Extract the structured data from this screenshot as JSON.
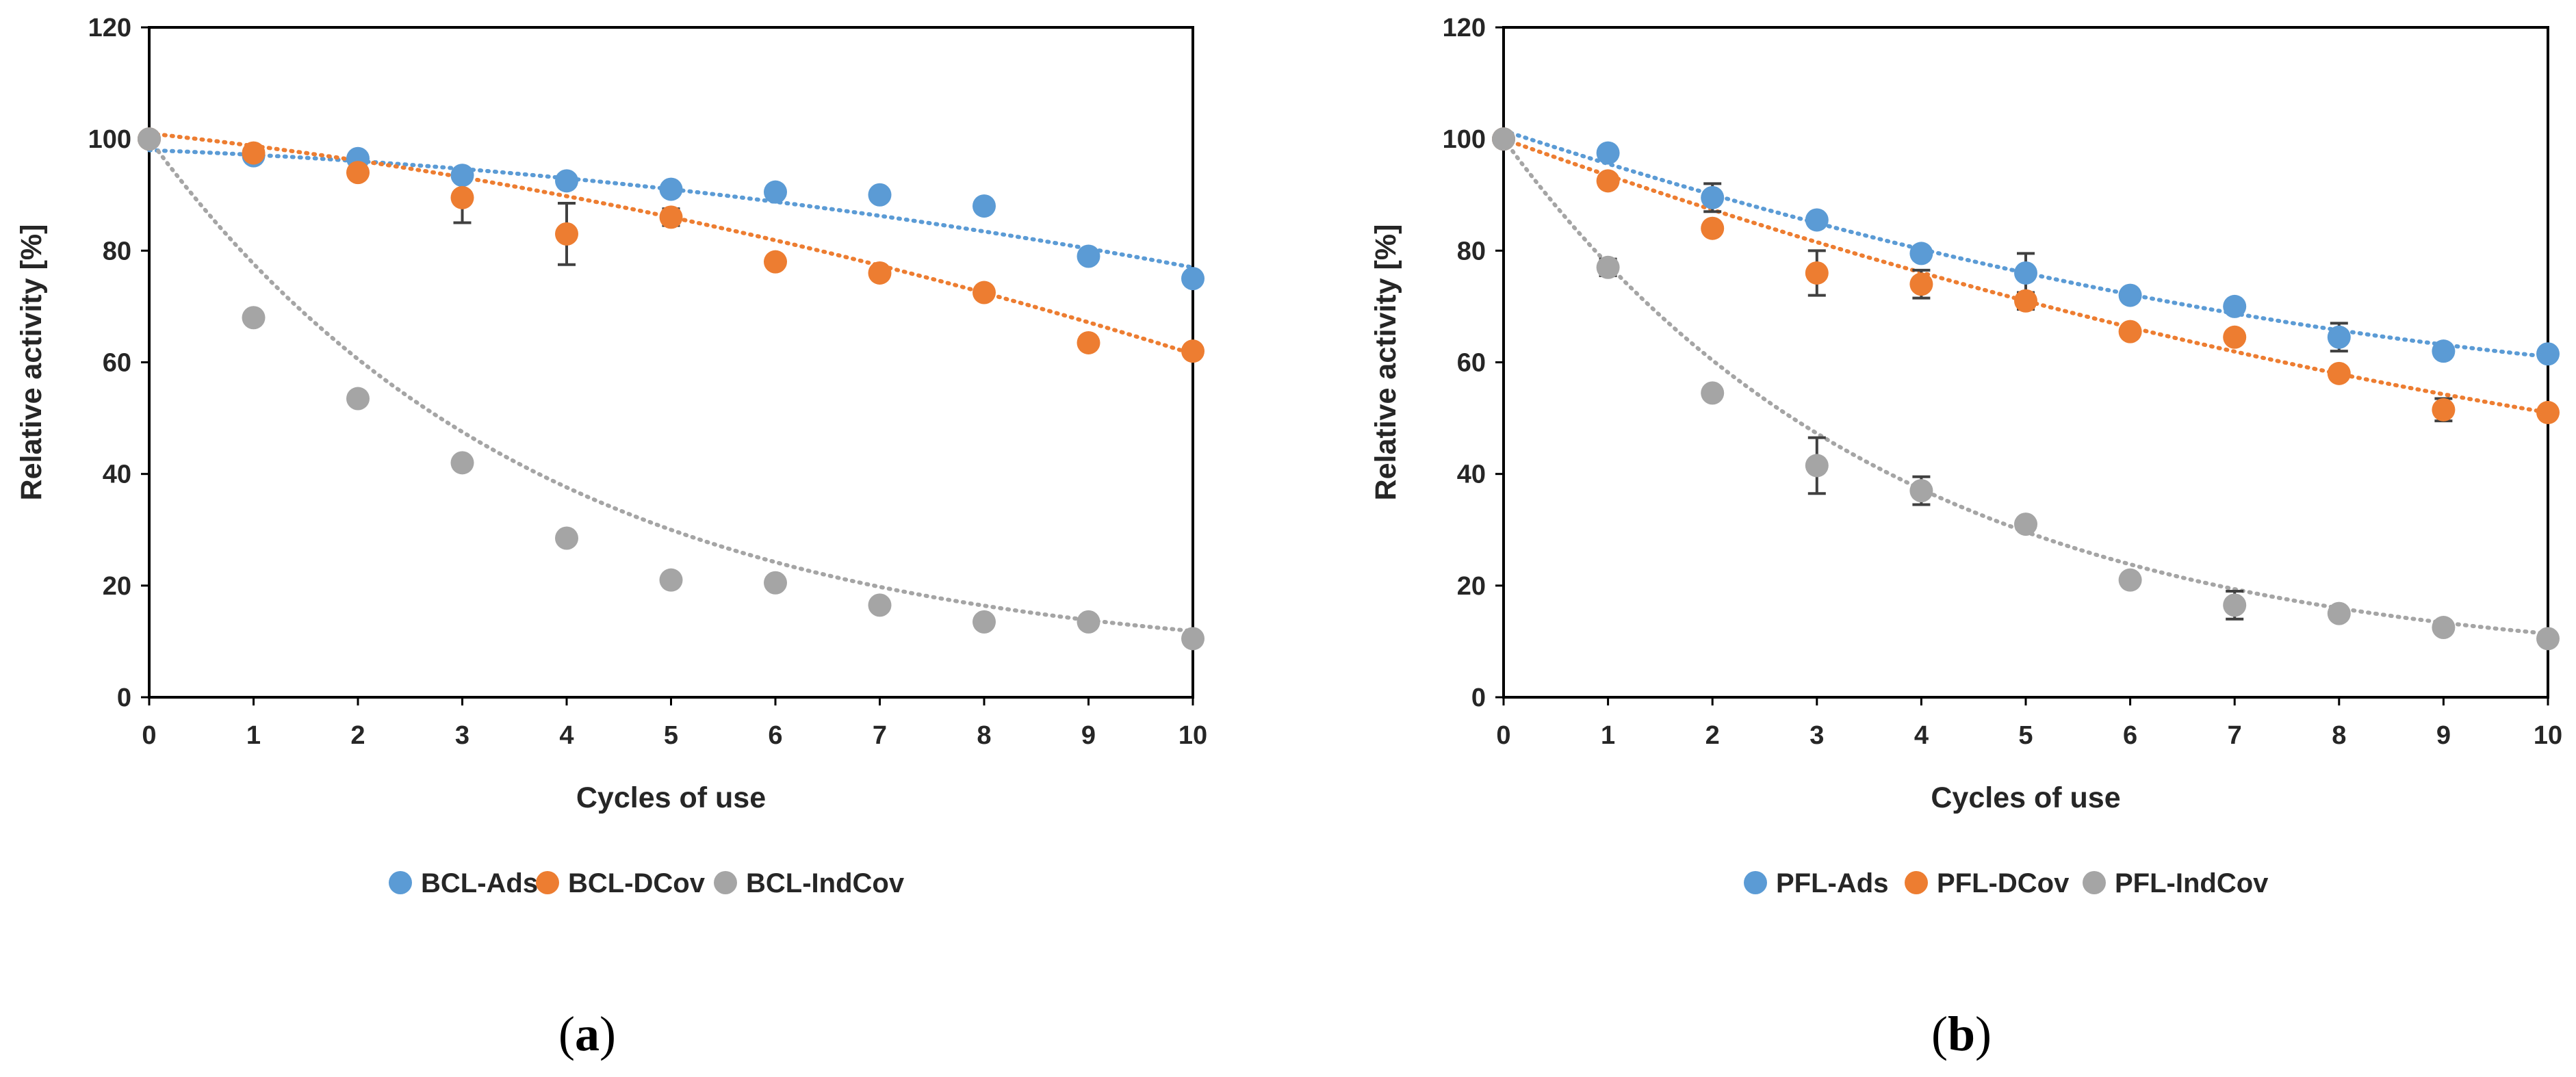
{
  "chart_data": [
    {
      "type": "scatter",
      "panel_label": "a",
      "xlabel": "Cycles of use",
      "ylabel": "Relative activity [%]",
      "xlim": [
        0,
        10
      ],
      "ylim": [
        0,
        120
      ],
      "xticks": [
        "0",
        "1",
        "2",
        "3",
        "4",
        "5",
        "6",
        "7",
        "8",
        "9",
        "10"
      ],
      "yticks": [
        "0",
        "20",
        "40",
        "60",
        "80",
        "100",
        "120"
      ],
      "grid": false,
      "legend_position": "bottom",
      "series": [
        {
          "name": "BCL-Ads",
          "color": "#5B9BD5",
          "x": [
            0,
            1,
            2,
            3,
            4,
            5,
            6,
            7,
            8,
            9,
            10
          ],
          "y": [
            100,
            97,
            96.5,
            93.5,
            92.5,
            91,
            90.5,
            90,
            88,
            79,
            75
          ],
          "err": [
            0,
            0,
            0,
            0,
            0,
            0,
            0,
            0,
            0,
            0,
            0
          ],
          "trend_ends": [
            98,
            77
          ]
        },
        {
          "name": "BCL-DCov",
          "color": "#ED7D31",
          "x": [
            0,
            1,
            2,
            3,
            4,
            5,
            6,
            7,
            8,
            9,
            10
          ],
          "y": [
            100,
            97.5,
            94,
            89.5,
            83,
            86,
            78,
            76,
            72.5,
            63.5,
            62
          ],
          "err": [
            0,
            0,
            0,
            4.5,
            5.5,
            1.5,
            0,
            0,
            0,
            0,
            0
          ],
          "trend_ends": [
            101,
            61.5
          ]
        },
        {
          "name": "BCL-IndCov",
          "color": "#A5A5A5",
          "x": [
            0,
            1,
            2,
            3,
            4,
            5,
            6,
            7,
            8,
            9,
            10
          ],
          "y": [
            100,
            68,
            53.5,
            42,
            28.5,
            21,
            20.5,
            16.5,
            13.5,
            13.5,
            10.5
          ],
          "err": [
            0,
            0,
            0,
            0,
            0,
            0,
            0,
            0,
            0,
            0,
            0
          ],
          "trend_ends": [
            100,
            10.5
          ]
        }
      ]
    },
    {
      "type": "scatter",
      "panel_label": "b",
      "xlabel": "Cycles of use",
      "ylabel": "Relative activity [%]",
      "xlim": [
        0,
        10
      ],
      "ylim": [
        0,
        120
      ],
      "xticks": [
        "0",
        "1",
        "2",
        "3",
        "4",
        "5",
        "6",
        "7",
        "8",
        "9",
        "10"
      ],
      "yticks": [
        "0",
        "20",
        "40",
        "60",
        "80",
        "100",
        "120"
      ],
      "grid": false,
      "legend_position": "bottom",
      "series": [
        {
          "name": "PFL-Ads",
          "color": "#5B9BD5",
          "x": [
            0,
            1,
            2,
            3,
            4,
            5,
            6,
            7,
            8,
            9,
            10
          ],
          "y": [
            100,
            97.5,
            89.5,
            85.5,
            79.5,
            76,
            72,
            70,
            64.5,
            62,
            61.5
          ],
          "err": [
            0,
            0,
            2.5,
            0,
            0,
            3.5,
            0,
            0,
            2.5,
            0,
            0
          ],
          "trend_ends": [
            101.5,
            61
          ]
        },
        {
          "name": "PFL-DCov",
          "color": "#ED7D31",
          "x": [
            0,
            1,
            2,
            3,
            4,
            5,
            6,
            7,
            8,
            9,
            10
          ],
          "y": [
            100,
            92.5,
            84,
            76,
            74,
            71,
            65.5,
            64.5,
            58,
            51.5,
            51
          ],
          "err": [
            0,
            0,
            0,
            4,
            2.5,
            1.5,
            0,
            0,
            0,
            2,
            0
          ],
          "trend_ends": [
            100,
            51
          ]
        },
        {
          "name": "PFL-IndCov",
          "color": "#A5A5A5",
          "x": [
            0,
            1,
            2,
            3,
            4,
            5,
            6,
            7,
            8,
            9,
            10
          ],
          "y": [
            100,
            77,
            54.5,
            41.5,
            37,
            31,
            21,
            16.5,
            15,
            12.5,
            10.5
          ],
          "err": [
            0,
            1.5,
            0,
            5,
            2.5,
            0,
            0,
            2.5,
            0,
            0,
            0
          ],
          "trend_ends": [
            100,
            10
          ]
        }
      ]
    }
  ]
}
